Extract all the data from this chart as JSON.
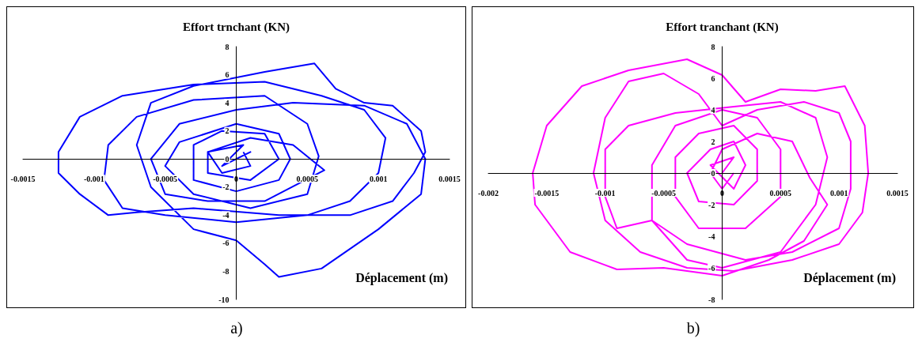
{
  "chart_data": [
    {
      "type": "line",
      "ylabel": "Effort trnchant (KN)",
      "xlabel": "Déplacement (m)",
      "annotations": [
        "a)"
      ],
      "xlim": [
        -0.0015,
        0.0015
      ],
      "xticks": [
        -0.0015,
        -0.001,
        -0.0005,
        0,
        0.0005,
        0.001,
        0.0015
      ],
      "ylim": [
        -10,
        8
      ],
      "yticks": [
        -10,
        -8,
        -6,
        -4,
        -2,
        0,
        2,
        4,
        6,
        8
      ],
      "marker": "none",
      "series": [
        {
          "color": "#0000ff",
          "x": [
            0,
            0.0001,
            -0.0001,
            5e-05,
            -0.0002,
            -0.0002,
            0.0001,
            0.0003,
            0.0002,
            -0.0001,
            -0.0003,
            -0.0003,
            0,
            0.0003,
            0.00038,
            0.0003,
            0,
            -0.0004,
            -0.0005,
            -0.0003,
            0.0001,
            0.0005,
            0.00058,
            0.0005,
            0.0002,
            -0.0003,
            -0.0007,
            -0.0009,
            -0.00093,
            -0.0008,
            -0.0005,
            0,
            0.0005,
            0.0008,
            0.001,
            0.00105,
            0.0009,
            0.0006,
            0.0002,
            -0.0003,
            -0.0008,
            -0.0011,
            -0.00125,
            -0.00125,
            -0.0011,
            -0.0009,
            -0.0007,
            -0.0003,
            0.0003,
            0.0008,
            0.0011,
            0.00125,
            0.00133,
            0.0013,
            0.0011,
            0.0009,
            0.0007,
            0.00055,
            0.0002,
            -0.0003,
            -0.0006,
            -0.0007,
            -0.0006,
            -0.0003,
            0,
            0.0002,
            0.0003,
            0.0006,
            0.001,
            0.0013,
            0.00133,
            0.0012,
            0.0009,
            0.0004,
            0,
            -0.0004,
            -0.0006,
            -0.0005,
            -0.0002,
            0.0002,
            0.00062,
            0.0004,
            0.0001,
            -0.0002,
            -0.0001,
            0.0001,
            5e-05
          ],
          "values": [
            0,
            0.5,
            -0.5,
            1,
            0.5,
            -1,
            -1.5,
            0,
            1.8,
            2,
            1,
            -1.5,
            -2.3,
            -1.5,
            0,
            1.8,
            2.5,
            1.2,
            -0.5,
            -2.5,
            -3.5,
            -2.5,
            0.2,
            2.5,
            4.5,
            4.2,
            3,
            1,
            -1.5,
            -3.5,
            -4,
            -4.5,
            -4,
            -3,
            -1,
            1.5,
            3.5,
            4.5,
            5.5,
            5.3,
            4.5,
            3,
            0.5,
            -1,
            -2.5,
            -4,
            -3.8,
            -3.5,
            -4,
            -4,
            -3,
            -1,
            0.5,
            2,
            3.8,
            4,
            5,
            6.8,
            6.2,
            5.2,
            4,
            1,
            -2,
            -5,
            -5.8,
            -7.5,
            -8.4,
            -7.8,
            -5,
            -2.5,
            0,
            2.5,
            3.8,
            4,
            3.5,
            2.5,
            0,
            -2.5,
            -3,
            -3,
            -0.8,
            1,
            1.5,
            0.5,
            -1,
            -0.5,
            0.5
          ]
        }
      ]
    },
    {
      "type": "line",
      "ylabel": "Effort tranchant (KN)",
      "xlabel": "Déplacement (m)",
      "annotations": [
        "b)"
      ],
      "xlim": [
        -0.002,
        0.0015
      ],
      "xticks": [
        -0.002,
        -0.0015,
        -0.001,
        -0.0005,
        0,
        0.0005,
        0.001,
        0.0015
      ],
      "ylim": [
        -8,
        8
      ],
      "yticks": [
        -8,
        -6,
        -4,
        -2,
        0,
        2,
        4,
        6,
        8
      ],
      "marker": "none",
      "series": [
        {
          "color": "#ff00ff",
          "x": [
            0,
            0.0001,
            -0.0001,
            0.0001,
            0.0002,
            0.0001,
            -0.0001,
            -0.0003,
            -0.0002,
            0.0001,
            0.0003,
            0.0003,
            0.0001,
            -0.0002,
            -0.0004,
            -0.0004,
            -0.0002,
            0.0002,
            0.0005,
            0.0005,
            0.0003,
            0,
            -0.0004,
            -0.0006,
            -0.0006,
            -0.0003,
            0,
            0.0005,
            0.0008,
            0.0009,
            0.0008,
            0.0005,
            0.0001,
            -0.0004,
            -0.0008,
            -0.001,
            -0.001,
            -0.0009,
            -0.0006,
            -0.0003,
            0.0002,
            0.0006,
            0.001,
            0.0011,
            0.0011,
            0.001,
            0.0007,
            0.0003,
            0,
            -0.0002,
            -0.0005,
            -0.0008,
            -0.001,
            -0.0011,
            -0.001,
            -0.0007,
            -0.0003,
            0.0001,
            0.0006,
            0.001,
            0.0012,
            0.00125,
            0.00122,
            0.00105,
            0.0008,
            0.0005,
            0.0002,
            0,
            -0.0003,
            -0.0008,
            -0.0012,
            -0.0015,
            -0.00162,
            -0.0016,
            -0.0013,
            -0.0009,
            -0.0005,
            0,
            0.0004,
            0.0007,
            0.0009,
            0.00075,
            0.0006,
            0.0003,
            0,
            -0.0001,
            0,
            0.0001
          ],
          "values": [
            0,
            1,
            0.5,
            -1,
            0.5,
            2,
            1.5,
            0,
            -1.8,
            -2,
            -0.5,
            1.5,
            3,
            2.5,
            1,
            -1.5,
            -3.5,
            -3.5,
            -1.5,
            1.5,
            3.5,
            4,
            3,
            0.5,
            -3,
            -5.5,
            -6,
            -5,
            -2,
            1,
            3.5,
            4.5,
            4.2,
            3.8,
            3,
            1.5,
            -1.5,
            -3.5,
            -3,
            -4.5,
            -5.5,
            -5,
            -3.5,
            -1,
            2,
            3.8,
            4.5,
            4,
            3,
            5,
            6.3,
            5.8,
            3.5,
            0,
            -3,
            -5,
            -6,
            -6.2,
            -5.5,
            -4.5,
            -2.5,
            0,
            3,
            5.5,
            5.2,
            5.3,
            4.5,
            6.2,
            7.2,
            6.5,
            5.5,
            3,
            0,
            -2,
            -5,
            -6.1,
            -6,
            -6.5,
            -5.5,
            -4.3,
            -2,
            -0.3,
            2,
            2.5,
            1.5,
            0,
            -1,
            0
          ]
        }
      ]
    }
  ]
}
